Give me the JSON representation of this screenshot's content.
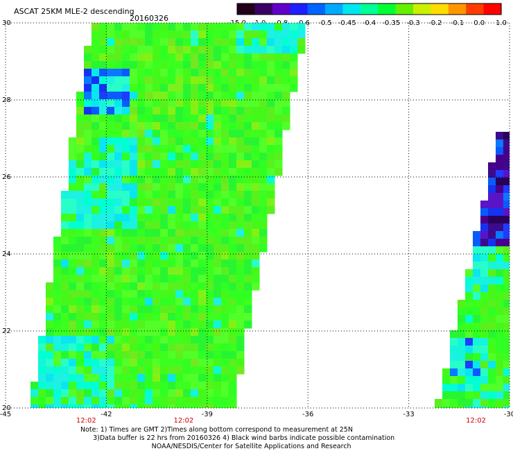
{
  "title": "ASCAT 25KM MLE-2 descending",
  "date": "20160326",
  "colorbar": {
    "labels": [
      "-15.0",
      "-1.0",
      "-0.8",
      "-0.6",
      "-0.5",
      "-0.45",
      "-0.4",
      "-0.35",
      "-0.3",
      "-0.2",
      "-0.1",
      "0.0",
      "1.0"
    ],
    "colors": [
      "#22001a",
      "#3a0064",
      "#6000c8",
      "#1e1eff",
      "#0064ff",
      "#00aaff",
      "#00e6f0",
      "#00ff96",
      "#00ff32",
      "#64f000",
      "#c8f000",
      "#ffdc00",
      "#ff9600",
      "#ff3c00",
      "#ff0000"
    ]
  },
  "axes": {
    "lon_labels": [
      "-45",
      "-42",
      "-39",
      "-36",
      "-33",
      "-30"
    ],
    "lon_values": [
      -45,
      -42,
      -39,
      -36,
      -33,
      -30
    ],
    "lat_labels": [
      "30",
      "28",
      "26",
      "24",
      "22",
      "20"
    ],
    "lat_values": [
      30,
      28,
      26,
      24,
      22,
      20
    ],
    "lon_range": [
      -45,
      -30
    ],
    "lat_range": [
      20,
      30
    ]
  },
  "time_labels": [
    {
      "text": "12:02",
      "lon": -42.6
    },
    {
      "text": "12:02",
      "lon": -39.7
    },
    {
      "text": "12:02",
      "lon": -31.0
    }
  ],
  "notes": {
    "line1": "Note: 1) Times are GMT 2)Times along bottom correspond to measurement at 25N",
    "line2": "      3)Data buffer is 22 hrs from 20160326 4) Black wind barbs indicate possible contamination",
    "line3": "                                  NOAA/NESDIS/Center for Satellite Applications and Research"
  }
}
